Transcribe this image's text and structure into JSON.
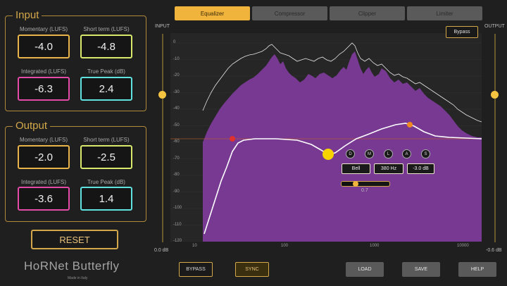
{
  "input_panel": {
    "title": "Input",
    "momentary_label": "Momentary (LUFS)",
    "momentary_value": "-4.0",
    "short_term_label": "Short term (LUFS)",
    "short_term_value": "-4.8",
    "integrated_label": "Integrated (LUFS)",
    "integrated_value": "-6.3",
    "true_peak_label": "True Peak (dB)",
    "true_peak_value": "2.4"
  },
  "output_panel": {
    "title": "Output",
    "momentary_label": "Momentary (LUFS)",
    "momentary_value": "-2.0",
    "short_term_label": "Short term (LUFS)",
    "short_term_value": "-2.5",
    "integrated_label": "Integrated (LUFS)",
    "integrated_value": "-3.6",
    "true_peak_label": "True Peak (dB)",
    "true_peak_value": "1.4"
  },
  "reset_label": "RESET",
  "logo": {
    "name": "HoRNet Butterfly",
    "sub": "Made in Italy"
  },
  "tabs": [
    {
      "label": "Equalizer",
      "active": true
    },
    {
      "label": "Compressor",
      "active": false
    },
    {
      "label": "Clipper",
      "active": false
    },
    {
      "label": "Limiter",
      "active": false
    }
  ],
  "input_slider": {
    "label": "INPUT",
    "value_label": "0.0 dB",
    "level": 0.71
  },
  "output_slider": {
    "label": "OUTPUT",
    "value_label": "-0.6 dB",
    "level": 0.71
  },
  "bypass_top_label": "Bypass",
  "graph": {
    "y_ticks": [
      "0",
      "-10",
      "-20",
      "-30",
      "-40",
      "-50",
      "-60",
      "-70",
      "-80",
      "-90",
      "-100",
      "-110",
      "-120"
    ],
    "x_ticks": [
      "10",
      "100",
      "1000",
      "10000"
    ]
  },
  "band_editor": {
    "buttons": [
      "D",
      "M",
      "L",
      "A",
      "S"
    ],
    "type": "Bell",
    "freq": "380 Hz",
    "gain": "-3.0 dB",
    "q_value": "0.7",
    "q_level": 0.3
  },
  "bottom_buttons": {
    "bypass": "BYPASS",
    "sync": "SYNC",
    "load": "LOAD",
    "save": "SAVE",
    "help": "HELP"
  },
  "colors": {
    "accent": "#f0b33c",
    "spectrum_fill": "#7b3a98",
    "band_low": "#e03030",
    "band_mid": "#f5d400",
    "band_high": "#f08a20"
  }
}
